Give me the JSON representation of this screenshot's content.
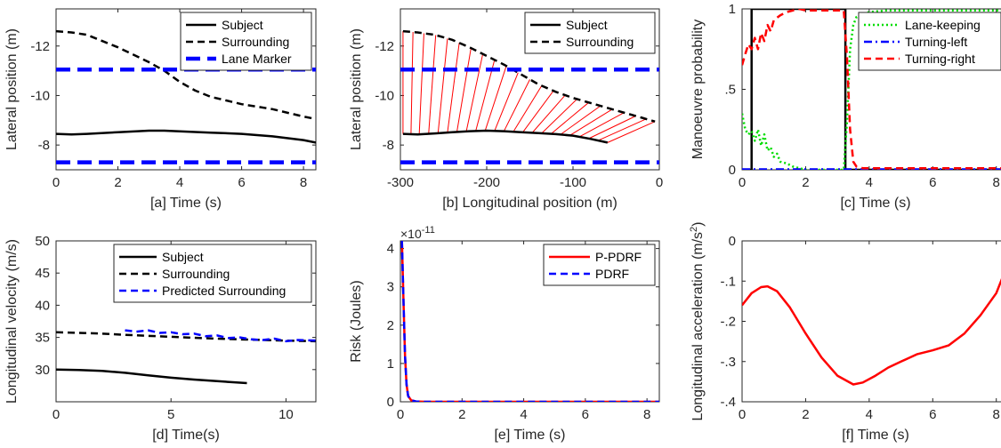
{
  "chart_data": [
    {
      "id": "a",
      "type": "line",
      "xlabel": "[a] Time (s)",
      "ylabel": "Lateral position (m)",
      "xlim": [
        0,
        8.4
      ],
      "ylim": [
        -7,
        -13.5
      ],
      "y_reversed": true,
      "xticks": [
        0,
        2,
        4,
        6,
        8
      ],
      "yticks": [
        -12,
        -10,
        -8
      ],
      "legend": "top-right",
      "series": [
        {
          "name": "Subject",
          "color": "#000000",
          "style": "solid",
          "x": [
            0,
            0.5,
            1,
            2,
            3,
            3.5,
            4,
            5,
            6,
            7,
            8,
            8.4
          ],
          "y": [
            -8.45,
            -8.43,
            -8.45,
            -8.52,
            -8.58,
            -8.58,
            -8.55,
            -8.5,
            -8.45,
            -8.35,
            -8.2,
            -8.1
          ]
        },
        {
          "name": "Surrounding",
          "color": "#000000",
          "style": "dashed",
          "x": [
            0,
            0.5,
            1,
            1.5,
            2,
            2.5,
            3,
            3.5,
            4,
            4.5,
            5,
            5.5,
            6,
            6.5,
            7,
            7.5,
            8,
            8.4
          ],
          "y": [
            -12.6,
            -12.55,
            -12.45,
            -12.2,
            -11.95,
            -11.65,
            -11.35,
            -11.0,
            -10.55,
            -10.2,
            -9.95,
            -9.8,
            -9.65,
            -9.55,
            -9.45,
            -9.3,
            -9.15,
            -9.05
          ]
        },
        {
          "name": "Lane Marker",
          "color": "#0000ff",
          "style": "thick-dashed",
          "x": [
            0,
            8.4
          ],
          "y": [
            -11.05,
            -11.05
          ]
        },
        {
          "name": "",
          "color": "#0000ff",
          "style": "thick-dashed",
          "x": [
            0,
            8.4
          ],
          "y": [
            -7.3,
            -7.3
          ]
        }
      ]
    },
    {
      "id": "b",
      "type": "line",
      "xlabel": "[b] Longitudinal position (m)",
      "ylabel": "Lateral position (m)",
      "xlim": [
        -300,
        0
      ],
      "ylim": [
        -7,
        -13.5
      ],
      "y_reversed": true,
      "xticks": [
        -300,
        -200,
        -100,
        0
      ],
      "yticks": [
        -12,
        -10,
        -8
      ],
      "legend": "top-right",
      "series": [
        {
          "name": "Subject",
          "color": "#000000",
          "style": "solid",
          "x": [
            -297,
            -280,
            -260,
            -240,
            -220,
            -200,
            -180,
            -160,
            -140,
            -120,
            -100,
            -80,
            -60
          ],
          "y": [
            -8.45,
            -8.43,
            -8.47,
            -8.52,
            -8.56,
            -8.58,
            -8.56,
            -8.52,
            -8.48,
            -8.44,
            -8.38,
            -8.25,
            -8.1
          ]
        },
        {
          "name": "Surrounding",
          "color": "#000000",
          "style": "dashed",
          "x": [
            -297,
            -280,
            -260,
            -240,
            -220,
            -200,
            -180,
            -160,
            -140,
            -120,
            -100,
            -80,
            -60,
            -40,
            -20,
            -5
          ],
          "y": [
            -12.6,
            -12.55,
            -12.45,
            -12.25,
            -11.95,
            -11.6,
            -11.25,
            -10.85,
            -10.45,
            -10.15,
            -9.9,
            -9.7,
            -9.5,
            -9.3,
            -9.1,
            -8.95
          ]
        },
        {
          "name": "",
          "color": "#0000ff",
          "style": "thick-dashed",
          "x": [
            -300,
            0
          ],
          "y": [
            -11.05,
            -11.05
          ]
        },
        {
          "name": "",
          "color": "#0000ff",
          "style": "thick-dashed",
          "x": [
            -300,
            0
          ],
          "y": [
            -7.3,
            -7.3
          ]
        }
      ]
    },
    {
      "id": "c",
      "type": "line",
      "xlabel": "[c] Time (s)",
      "ylabel": "Manoeuvre probability",
      "xlim": [
        0,
        8.4
      ],
      "ylim": [
        0,
        1
      ],
      "xticks": [
        0,
        2,
        4,
        6,
        8
      ],
      "yticks": [
        0,
        0.5,
        1
      ],
      "legend": "top-right",
      "series": [
        {
          "name": "",
          "color": "#000000",
          "style": "solid",
          "x": [
            0,
            0.3,
            0.3,
            3.25,
            3.25,
            8.4
          ],
          "y": [
            0,
            0,
            1,
            1,
            0,
            0
          ]
        },
        {
          "name": "Lane-keeping",
          "color": "#00dd00",
          "style": "dotted",
          "x": [
            0,
            0.1,
            0.2,
            0.3,
            0.4,
            0.5,
            0.6,
            0.7,
            0.8,
            0.9,
            1.0,
            1.1,
            1.2,
            1.4,
            1.6,
            1.8,
            2.0,
            2.4,
            2.8,
            3.2,
            3.3,
            3.4,
            3.5,
            3.6,
            3.8,
            4.0,
            4.5,
            5.0,
            6.0,
            7.0,
            8.4
          ],
          "y": [
            0.35,
            0.25,
            0.22,
            0.24,
            0.18,
            0.25,
            0.15,
            0.22,
            0.12,
            0.14,
            0.08,
            0.1,
            0.05,
            0.04,
            0.02,
            0.01,
            0.0,
            0.0,
            0.0,
            0.0,
            0.3,
            0.75,
            0.9,
            0.95,
            0.97,
            0.98,
            0.99,
            0.99,
            0.99,
            0.99,
            0.99
          ]
        },
        {
          "name": "Turning-left",
          "color": "#0000ff",
          "style": "dashdot",
          "x": [
            0,
            8.4
          ],
          "y": [
            0.003,
            0.003
          ]
        },
        {
          "name": "Turning-right",
          "color": "#ff0000",
          "style": "dashed",
          "x": [
            0,
            0.1,
            0.2,
            0.3,
            0.4,
            0.5,
            0.6,
            0.7,
            0.8,
            0.9,
            1.0,
            1.2,
            1.4,
            1.6,
            1.8,
            2.0,
            2.5,
            3.0,
            3.2,
            3.3,
            3.4,
            3.5,
            3.6,
            3.8,
            4.0,
            5.0,
            6.0,
            7.0,
            8.4
          ],
          "y": [
            0.65,
            0.72,
            0.78,
            0.75,
            0.82,
            0.75,
            0.85,
            0.8,
            0.9,
            0.86,
            0.93,
            0.96,
            0.98,
            0.99,
            1.0,
            0.99,
            0.99,
            0.99,
            0.99,
            0.7,
            0.25,
            0.05,
            0.02,
            0.01,
            0.01,
            0.01,
            0.01,
            0.01,
            0.01
          ]
        }
      ]
    },
    {
      "id": "d",
      "type": "line",
      "xlabel": "[d] Time(s)",
      "ylabel": "Longitudinal velocity (m/s)",
      "xlim": [
        0,
        11.3
      ],
      "ylim": [
        25,
        50
      ],
      "xticks": [
        0,
        5,
        10
      ],
      "yticks": [
        30,
        35,
        40,
        45,
        50
      ],
      "legend": "top-right",
      "series": [
        {
          "name": "Subject",
          "color": "#000000",
          "style": "solid",
          "x": [
            0,
            1,
            2,
            3,
            4,
            5,
            6,
            7,
            8.3
          ],
          "y": [
            30.0,
            29.95,
            29.8,
            29.5,
            29.1,
            28.75,
            28.45,
            28.2,
            27.9
          ]
        },
        {
          "name": "Surrounding",
          "color": "#000000",
          "style": "dashed",
          "x": [
            0,
            1,
            2,
            3,
            4,
            5,
            6,
            7,
            8,
            9,
            10,
            11.3
          ],
          "y": [
            35.8,
            35.7,
            35.6,
            35.4,
            35.25,
            35.1,
            34.95,
            34.8,
            34.7,
            34.6,
            34.5,
            34.4
          ]
        },
        {
          "name": "Predicted Surrounding",
          "color": "#0000ff",
          "style": "dashed",
          "x": [
            3.0,
            3.5,
            4.0,
            4.5,
            5.0,
            5.5,
            6.0,
            6.5,
            7.0,
            7.5,
            8.0,
            8.5,
            9.0,
            9.5,
            10.0,
            10.5,
            11.3
          ],
          "y": [
            36.1,
            35.9,
            36.1,
            35.7,
            35.8,
            35.5,
            35.6,
            35.2,
            35.3,
            34.9,
            35.0,
            34.7,
            34.6,
            34.8,
            34.4,
            34.6,
            34.5
          ]
        }
      ]
    },
    {
      "id": "e",
      "type": "line",
      "xlabel": "[e] Time (s)",
      "ylabel": "Risk (Joules)",
      "exponent_label": "×10",
      "exponent_power": "-11",
      "xlim": [
        0,
        8.4
      ],
      "ylim": [
        0,
        4.2
      ],
      "xticks": [
        0,
        2,
        4,
        6,
        8
      ],
      "yticks": [
        0,
        1,
        2,
        3,
        4
      ],
      "legend": "top-right",
      "series": [
        {
          "name": "P-PDRF",
          "color": "#ff0000",
          "style": "solid",
          "x": [
            0.05,
            0.1,
            0.15,
            0.2,
            0.25,
            0.35,
            0.5,
            0.8,
            8.4
          ],
          "y": [
            4.2,
            2.6,
            1.2,
            0.45,
            0.15,
            0.04,
            0.01,
            0.0,
            0.0
          ]
        },
        {
          "name": "PDRF",
          "color": "#0000ff",
          "style": "dashed",
          "x": [
            0.05,
            0.1,
            0.15,
            0.2,
            0.25,
            0.35,
            0.5,
            0.8,
            8.4
          ],
          "y": [
            4.2,
            2.6,
            1.2,
            0.45,
            0.15,
            0.04,
            0.01,
            0.0,
            0.0
          ]
        }
      ]
    },
    {
      "id": "f",
      "type": "line",
      "xlabel": "[f] Time (s)",
      "ylabel": "Longitudinal acceleration (m/s",
      "ylabel_sup": "2",
      "ylabel_tail": ")",
      "xlim": [
        0,
        8.4
      ],
      "ylim": [
        -0.4,
        0
      ],
      "xticks": [
        0,
        2,
        4,
        6,
        8
      ],
      "yticks": [
        -0.4,
        -0.3,
        -0.2,
        -0.1,
        0
      ],
      "series": [
        {
          "name": "",
          "color": "#ff0000",
          "style": "solid",
          "x": [
            0,
            0.3,
            0.6,
            0.8,
            1.1,
            1.5,
            2.0,
            2.5,
            3.0,
            3.5,
            3.8,
            4.2,
            4.6,
            5.0,
            5.5,
            6.0,
            6.5,
            7.0,
            7.5,
            8.0,
            8.4
          ],
          "y": [
            -0.16,
            -0.13,
            -0.115,
            -0.113,
            -0.125,
            -0.165,
            -0.23,
            -0.29,
            -0.335,
            -0.357,
            -0.352,
            -0.335,
            -0.315,
            -0.3,
            -0.282,
            -0.272,
            -0.26,
            -0.23,
            -0.185,
            -0.13,
            -0.05
          ]
        }
      ]
    }
  ]
}
